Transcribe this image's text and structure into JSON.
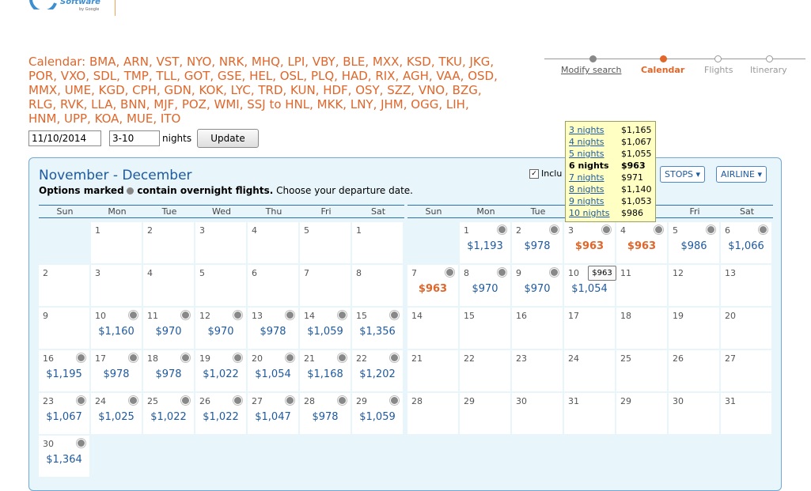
{
  "logo": {
    "text": "Software",
    "sub": "by Google"
  },
  "route": "Calendar: BMA, ARN, VST, NYO, NRK, MHQ, LPI, VBY, BLE, MXX, KSD, TKU, JKG, POR, VXO, SDL, TMP, TLL, GOT, GSE, HEL, OSL, PLQ, HAD, RIX, AGH, VAA, OSD, MMX, UME, KGD, CPH, GDN, KOK, LYC, TRD, KUN, HDF, OSY, SZZ, VNO, BZG, RLG, RVK, LLA, BNN, MJF, POZ, WMI, SSJ to HNL, MKK, LNY, JHM, OGG, LIH, HNM, UPP, KOA, MUE, ITO",
  "form": {
    "date": "11/10/2014",
    "nights": "3-10",
    "nights_label": "nights",
    "update": "Update"
  },
  "steps": [
    "Modify search",
    "Calendar",
    "Flights",
    "Itinerary"
  ],
  "panel": {
    "title": "November - December",
    "note_bold_a": "Options marked",
    "note_bold_b": "contain overnight flights.",
    "note_rest": "Choose your departure date.",
    "incl": "Inclu",
    "stops": "STOPS ▾",
    "airline": "AIRLINE ▾"
  },
  "weekdays": [
    "Sun",
    "Mon",
    "Tue",
    "Wed",
    "Thu",
    "Fri",
    "Sat"
  ],
  "nov": [
    [
      "",
      "1",
      "2",
      "3",
      "4",
      "5",
      "1"
    ],
    [
      "2",
      "3",
      "4",
      "5",
      "6",
      "7",
      "8"
    ],
    [
      "9",
      "10|$1,160",
      "11|$970",
      "12|$970",
      "13|$978",
      "14|$1,059",
      "15|$1,356"
    ],
    [
      "16|$1,195",
      "17|$978",
      "18|$978",
      "19|$1,022",
      "20|$1,054",
      "21|$1,168",
      "22|$1,202"
    ],
    [
      "23|$1,067",
      "24|$1,025",
      "25|$1,022",
      "26|$1,022",
      "27|$1,047",
      "28|$978",
      "29|$1,059"
    ],
    [
      "30|$1,364"
    ]
  ],
  "dec": [
    [
      "",
      "1|$1,193",
      "2|$978",
      "3|$963*",
      "4|$963*",
      "5|$986",
      "6|$1,066"
    ],
    [
      "7|$963*",
      "8|$970",
      "9|$970",
      "10|$1,054",
      "11",
      "12",
      "13"
    ],
    [
      "14",
      "15",
      "16",
      "17",
      "18",
      "19",
      "20"
    ],
    [
      "21",
      "22",
      "23",
      "24",
      "25",
      "26",
      "27"
    ],
    [
      "28",
      "29",
      "30",
      "31",
      "29",
      "30",
      "31"
    ]
  ],
  "popup": [
    [
      "3 nights",
      "$1,165"
    ],
    [
      "4 nights",
      "$1,067"
    ],
    [
      "5 nights",
      "$1,055"
    ],
    [
      "6 nights",
      "$963"
    ],
    [
      "7 nights",
      "$971"
    ],
    [
      "8 nights",
      "$1,140"
    ],
    [
      "9 nights",
      "$1,053"
    ],
    [
      "10 nights",
      "$986"
    ]
  ],
  "popup_selected": 3,
  "tooltip": "$963",
  "colors": {
    "accent": "#e0662a",
    "link": "#1e5aa0",
    "panel": "#e8f5fa"
  }
}
